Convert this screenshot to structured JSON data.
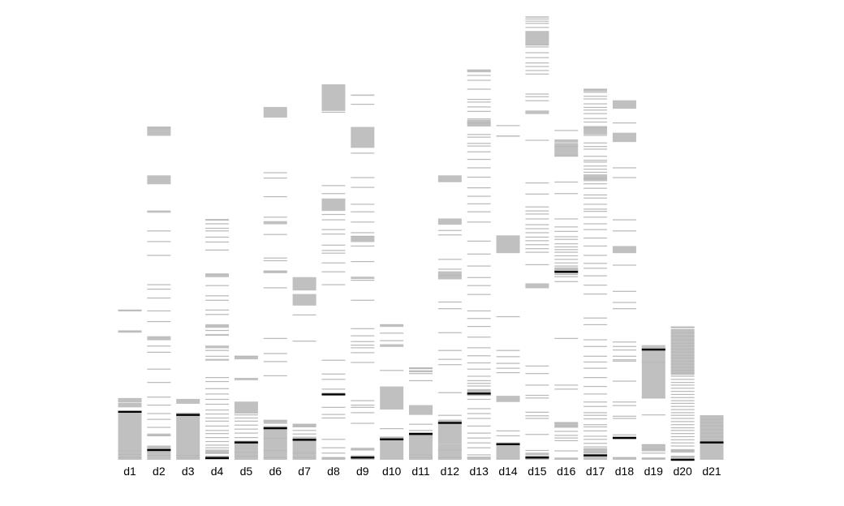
{
  "chart_data": {
    "type": "bar",
    "title": "",
    "xlabel": "",
    "ylabel": "",
    "ylim": [
      0,
      100
    ],
    "grid": false,
    "legend": "none",
    "categories": [
      "d1",
      "d2",
      "d3",
      "d4",
      "d5",
      "d6",
      "d7",
      "d8",
      "d9",
      "d10",
      "d11",
      "d12",
      "d13",
      "d14",
      "d15",
      "d16",
      "d17",
      "d18",
      "d19",
      "d20",
      "d21"
    ],
    "series": [
      {
        "values": [
          33.6,
          74.6,
          13.9,
          54.2,
          23.3,
          79.6,
          41.2,
          84.4,
          82.2,
          30.3,
          20.6,
          63.9,
          87.7,
          73.0,
          100.0,
          71.9,
          83.3,
          80.4,
          25.7,
          29.9,
          9.9
        ],
        "spans": [
          [
            [
              0,
              10.8
            ],
            [
              11.8,
              12.8
            ],
            [
              12.9,
              13.9
            ],
            [
              28.6,
              29.0
            ],
            [
              33.4,
              33.8
            ]
          ],
          [
            [
              0,
              2.2
            ],
            [
              2.2,
              3.2
            ],
            [
              5.4,
              5.9
            ],
            [
              26.9,
              27.8
            ],
            [
              55.6,
              56.1
            ],
            [
              62.0,
              64.0
            ],
            [
              72.9,
              74.2
            ],
            [
              73.9,
              75.0
            ]
          ],
          [
            [
              0,
              10.1
            ],
            [
              10.1,
              10.6
            ],
            [
              12.6,
              13.7
            ]
          ],
          [
            [
              0,
              0.4
            ],
            [
              0.4,
              0.8
            ],
            [
              1.3,
              2.3
            ],
            [
              22.3,
              22.7
            ],
            [
              25.1,
              25.7
            ],
            [
              27.9,
              28.3
            ],
            [
              29.7,
              30.5
            ],
            [
              41.1,
              41.9
            ],
            [
              53.8,
              54.2
            ]
          ],
          [
            [
              0,
              3.9
            ],
            [
              3.9,
              4.3
            ],
            [
              10.4,
              13.1
            ],
            [
              17.9,
              18.2
            ],
            [
              22.6,
              23.4
            ]
          ],
          [
            [
              0,
              7.1
            ],
            [
              7.1,
              7.5
            ],
            [
              8.1,
              9.0
            ],
            [
              42.0,
              42.6
            ],
            [
              53.0,
              53.7
            ],
            [
              77.0,
              79.4
            ]
          ],
          [
            [
              0,
              4.5
            ],
            [
              4.5,
              5.2
            ],
            [
              7.3,
              8.0
            ],
            [
              34.7,
              37.3
            ],
            [
              38.1,
              41.1
            ]
          ],
          [
            [
              0,
              0.5
            ],
            [
              14.7,
              15.1
            ],
            [
              56.0,
              58.8
            ],
            [
              78.5,
              82.8
            ],
            [
              82.4,
              84.5
            ]
          ],
          [
            [
              0,
              0.5
            ],
            [
              0.5,
              1.0
            ],
            [
              2.2,
              2.7
            ],
            [
              40.7,
              41.2
            ],
            [
              49.0,
              50.3
            ],
            [
              70.2,
              74.9
            ],
            [
              81.9,
              82.2
            ]
          ],
          [
            [
              0,
              4.6
            ],
            [
              4.6,
              5.1
            ],
            [
              11.3,
              16.5
            ],
            [
              25.4,
              26.0
            ],
            [
              29.9,
              30.4
            ]
          ],
          [
            [
              0,
              5.8
            ],
            [
              5.8,
              6.2
            ],
            [
              10.1,
              12.3
            ],
            [
              19.7,
              20.1
            ],
            [
              20.4,
              20.8
            ]
          ],
          [
            [
              0,
              3.5
            ],
            [
              3.5,
              8.3
            ],
            [
              8.3,
              8.8
            ],
            [
              40.6,
              42.4
            ],
            [
              52.9,
              54.3
            ],
            [
              62.6,
              64.0
            ]
          ],
          [
            [
              0,
              0.6
            ],
            [
              14.4,
              14.8
            ],
            [
              14.9,
              15.9
            ],
            [
              75.0,
              76.5
            ],
            [
              87.2,
              87.8
            ]
          ],
          [
            [
              0,
              3.5
            ],
            [
              3.5,
              3.9
            ],
            [
              13.0,
              14.4
            ],
            [
              46.5,
              50.5
            ],
            [
              72.7,
              73.0
            ]
          ],
          [
            [
              0,
              0.5
            ],
            [
              0.5,
              0.9
            ],
            [
              1.0,
              1.6
            ],
            [
              38.6,
              39.7
            ],
            [
              77.8,
              78.6
            ],
            [
              93.2,
              96.5
            ],
            [
              99.5,
              99.8
            ]
          ],
          [
            [
              0,
              0.5
            ],
            [
              7.2,
              8.5
            ],
            [
              41.9,
              42.3
            ],
            [
              42.4,
              43.3
            ],
            [
              68.2,
              71.3
            ],
            [
              71.4,
              72.1
            ]
          ],
          [
            [
              0,
              0.5
            ],
            [
              0.5,
              1.0
            ],
            [
              1.5,
              2.5
            ],
            [
              62.7,
              64.0
            ],
            [
              73.2,
              75.1
            ],
            [
              82.9,
              83.4
            ]
          ],
          [
            [
              0,
              0.5
            ],
            [
              4.9,
              5.3
            ],
            [
              46.5,
              48.1
            ],
            [
              71.5,
              73.6
            ],
            [
              79.0,
              80.9
            ]
          ],
          [
            [
              0,
              0.4
            ],
            [
              1.9,
              3.4
            ],
            [
              13.9,
              25.4
            ],
            [
              24.8,
              25.4
            ],
            [
              25.4,
              25.8
            ]
          ],
          [
            [
              0,
              0.4
            ],
            [
              0.4,
              0.8
            ],
            [
              1.6,
              2.4
            ],
            [
              19.1,
              29.2
            ],
            [
              29.6,
              29.9
            ]
          ],
          [
            [
              0,
              3.9
            ],
            [
              3.9,
              4.3
            ],
            [
              4.4,
              9.9
            ]
          ]
        ],
        "markers": [
          10.8,
          2.2,
          10.1,
          0.4,
          3.9,
          7.1,
          4.5,
          14.7,
          0.5,
          4.6,
          5.8,
          8.3,
          14.9,
          3.5,
          0.5,
          42.3,
          1.0,
          4.9,
          24.8,
          0.0,
          3.9
        ],
        "lines": [
          [
            0.5,
            1.2,
            2.0,
            29.0,
            33.6
          ],
          [
            1.0,
            1.8,
            5.4,
            7.3,
            9.1,
            10.4,
            12.3,
            14.1,
            17.4,
            20.4,
            24.2,
            25.6,
            31.1,
            33.5,
            36.4,
            38.4,
            39.4,
            46.0,
            49.1,
            51.5,
            74.6
          ],
          [
            0.5,
            1.0
          ],
          [
            0.8,
            1.6,
            2.7,
            3.3,
            4.1,
            5.0,
            5.9,
            6.6,
            7.6,
            8.7,
            9.4,
            10.3,
            11.2,
            12.5,
            13.6,
            14.8,
            16.0,
            17.6,
            18.5,
            23.3,
            24.6,
            29.1,
            32.7,
            33.7,
            35.9,
            36.9,
            39.2,
            41.8,
            47.2,
            49.0,
            50.1,
            51.5,
            52.1,
            53.1
          ],
          [
            0.8,
            1.7,
            5.0,
            6.0,
            6.9,
            7.8,
            8.7,
            9.4,
            10.1,
            18.3,
            23.3
          ],
          [
            0.5,
            2.1,
            4.8,
            7.5,
            8.8,
            18.9,
            22.1,
            23.9,
            27.3,
            38.7,
            42.3,
            44.8,
            45.4,
            50.7,
            54.6,
            59.2,
            63.4,
            64.6
          ],
          [
            0.5,
            1.5,
            5.8,
            6.6,
            7.6,
            8.0,
            26.7,
            32.6
          ],
          [
            0.5,
            1.5,
            2.7,
            4.6,
            9.4,
            10.2,
            11.8,
            15.9,
            18.1,
            19.3,
            22.4,
            39.4,
            42.3,
            44.3,
            46.5,
            47.1,
            48.3,
            50.8,
            51.8,
            54.0,
            55.2,
            59.9,
            61.7,
            78.2
          ],
          [
            2.2,
            8.2,
            10.6,
            11.8,
            12.3,
            13.3,
            21.9,
            24.1,
            25.2,
            25.8,
            26.6,
            27.9,
            29.5,
            35.9,
            40.4,
            44.6,
            48.1,
            50.3,
            51.1,
            53.5,
            55.8,
            57.5,
            61.3,
            63.5,
            69.0,
            80.0
          ],
          [
            5.1,
            7.0,
            20.1,
            26.8,
            28.5,
            30.4
          ],
          [
            0.5,
            1.1,
            6.6,
            8.0,
            17.8,
            19.4,
            20.0,
            20.6
          ],
          [
            0.5,
            2.2,
            8.9,
            10.0,
            15.1,
            21.4,
            22.6,
            24.6,
            28.6,
            34.0,
            35.5,
            41.5,
            42.9,
            45.1,
            50.6,
            51.6,
            62.6
          ],
          [
            0.6,
            1.1,
            2.7,
            3.8,
            4.9,
            6.0,
            7.6,
            9.3,
            10.4,
            11.5,
            13.6,
            14.5,
            16.6,
            17.2,
            17.8,
            18.8,
            20.4,
            21.8,
            23.4,
            25.2,
            27.6,
            30.0,
            31.8,
            33.5,
            37.2,
            39.2,
            41.0,
            43.6,
            46.3,
            49.2,
            53.5,
            55.8,
            57.6,
            59.3,
            61.2,
            63.6,
            65.7,
            67.6,
            69.3,
            70.6,
            71.2,
            72.6,
            73.2,
            75.8,
            76.7,
            78.4,
            79.4,
            80.5,
            81.1,
            83.4,
            85.4,
            86.5,
            87.7
          ],
          [
            5.4,
            6.5,
            19.6,
            20.6,
            21.7,
            23.2,
            24.6,
            32.2,
            75.2
          ],
          [
            2.1,
            5.7,
            9.3,
            9.9,
            10.7,
            13.9,
            14.5,
            16.8,
            19.4,
            21.1,
            43.9,
            46.7,
            47.5,
            48.4,
            49.3,
            50.1,
            51.1,
            52.0,
            52.9,
            54.2,
            55.3,
            56.0,
            56.9,
            59.8,
            62.3,
            71.9,
            80.8,
            81.7,
            82.3,
            86.8,
            87.6,
            88.5,
            89.3,
            90.5,
            91.6,
            92.9,
            93.4,
            97.3,
            98.2,
            98.7,
            99.2
          ],
          [
            2.0,
            4.3,
            4.9,
            5.5,
            6.4,
            7.6,
            8.3,
            15.9,
            16.8,
            27.3,
            40.1,
            41.2,
            41.7,
            42.7,
            43.6,
            44.3,
            45.1,
            45.9,
            46.7,
            47.3,
            47.9,
            48.6,
            49.6,
            50.2,
            51.4,
            52.4,
            54.2,
            59.9,
            62.5,
            68.4,
            70.5,
            74.1
          ],
          [
            1.5,
            2.5,
            2.9,
            3.7,
            4.6,
            5.3,
            6.5,
            7.4,
            7.9,
            9.2,
            10.0,
            10.6,
            12.0,
            13.0,
            14.8,
            16.5,
            18.5,
            20.6,
            22.0,
            23.3,
            25.5,
            27.0,
            30.4,
            31.9,
            37.3,
            39.3,
            41.4,
            43.1,
            44.2,
            46.0,
            48.1,
            49.9,
            51.8,
            53.1,
            54.6,
            55.9,
            56.4,
            57.5,
            58.9,
            59.6,
            61.1,
            62.1,
            63.3,
            64.1,
            64.7,
            65.4,
            66.1,
            67.0,
            67.4,
            68.3,
            69.9,
            70.5,
            71.3,
            73.0,
            74.7,
            76.0,
            76.8,
            77.9,
            78.7,
            79.3,
            80.1,
            81.2,
            81.8,
            82.7,
            83.4
          ],
          [
            0.5,
            5.6,
            9.3,
            9.8,
            12.2,
            13.0,
            17.7,
            22.2,
            22.5,
            23.3,
            24.7,
            25.5,
            26.5,
            34.0,
            35.4,
            37.9,
            43.8,
            51.5,
            54.0,
            63.5,
            65.7,
            75.8
          ],
          [
            0.4,
            1.5,
            2.4,
            3.4,
            10.1,
            13.9,
            21.9
          ],
          [
            0.8,
            2.0,
            3.1,
            3.8,
            4.5,
            5.2,
            5.9,
            6.6,
            7.2,
            7.9,
            8.6,
            9.3,
            10.0,
            10.6,
            11.3,
            12.0,
            12.7,
            13.3,
            14.0,
            14.7,
            15.4,
            16.1,
            16.8,
            17.4,
            18.1,
            18.8,
            19.5,
            20.1,
            20.8,
            21.5,
            22.2,
            22.9,
            23.5,
            24.2,
            24.9,
            25.6,
            26.2,
            27.0,
            27.8,
            28.6,
            29.3,
            29.9
          ],
          [
            4.4,
            5.2,
            6.0,
            6.8,
            7.6,
            8.4,
            9.1,
            9.9
          ]
        ]
      }
    ]
  }
}
